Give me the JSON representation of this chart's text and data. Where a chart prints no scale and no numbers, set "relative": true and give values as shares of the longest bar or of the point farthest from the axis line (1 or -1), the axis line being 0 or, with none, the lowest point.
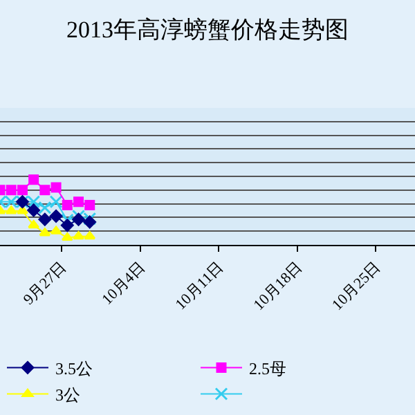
{
  "chart_data": {
    "type": "line",
    "title": "2013年高淳螃蟹价格走势图",
    "relative": true,
    "grid": "y",
    "legend": "bottom",
    "x": [
      "2013-09-21T12:00",
      "2013-09-22T12:00",
      "2013-09-23T12:00",
      "2013-09-24T12:00",
      "2013-09-25T12:00",
      "2013-09-26T12:00",
      "2013-09-27T12:00",
      "2013-09-28T12:00",
      "2013-09-29T12:00"
    ],
    "xlim": [
      "2013-09-21T12:00",
      "2013-10-28T12:00"
    ],
    "xticks": [
      {
        "value": "2013-09-27",
        "label": "9月27日"
      },
      {
        "value": "2013-10-04",
        "label": "10月4日"
      },
      {
        "value": "2013-10-11",
        "label": "10月11日"
      },
      {
        "value": "2013-10-18",
        "label": "10月18日"
      },
      {
        "value": "2013-10-25",
        "label": "10月25日"
      }
    ],
    "series": [
      {
        "name": "3.5公",
        "color": "#000080",
        "marker": "diamond",
        "values": [
          null,
          null,
          0.66,
          0.53,
          0.39,
          0.44,
          0.3,
          0.39,
          0.35
        ]
      },
      {
        "name": "2.5母",
        "color": "#ff00ff",
        "marker": "square",
        "values": [
          0.84,
          0.84,
          0.84,
          1,
          0.84,
          0.88,
          0.61,
          0.66,
          0.61
        ]
      },
      {
        "name": "3公",
        "color": "#ffff00",
        "marker": "triangle",
        "values": [
          0.52,
          0.52,
          0.52,
          0.3,
          0.18,
          0.21,
          0.11,
          0.13,
          0.13
        ]
      },
      {
        "color": "#33ccee",
        "marker": "cross",
        "values": [
          0.66,
          0.66,
          0.66,
          0.66,
          0.57,
          0.66,
          0.38,
          0.44,
          0.4
        ]
      }
    ]
  }
}
